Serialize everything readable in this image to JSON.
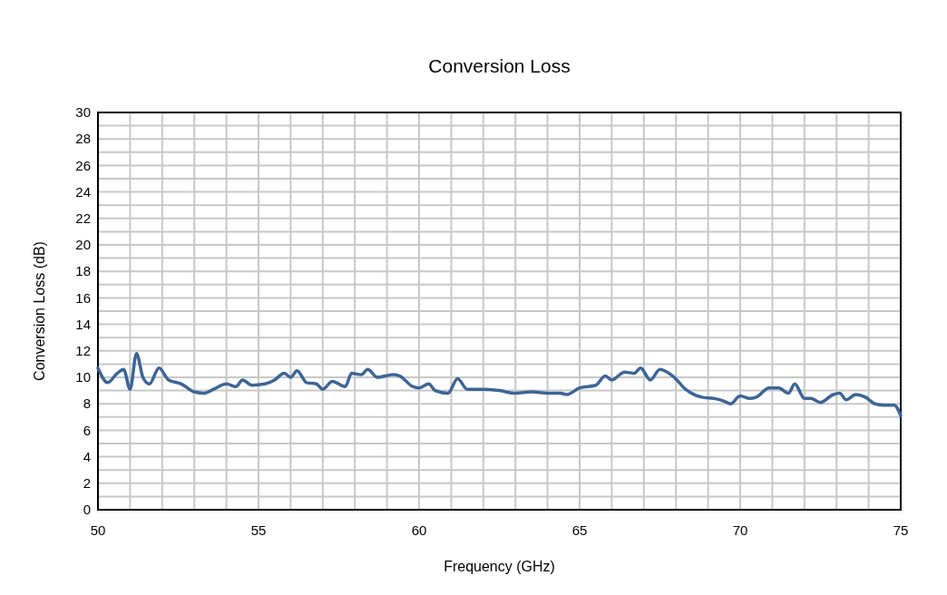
{
  "chart_data": {
    "type": "line",
    "title": "Conversion Loss",
    "xlabel": "Frequency (GHz)",
    "ylabel": "Conversion Loss (dB)",
    "x": [
      50,
      50.3,
      50.6,
      50.8,
      51.0,
      51.2,
      51.4,
      51.6,
      51.9,
      52.2,
      52.6,
      53.0,
      53.3,
      53.6,
      54.0,
      54.3,
      54.5,
      54.8,
      55.2,
      55.5,
      55.8,
      56.0,
      56.2,
      56.5,
      56.8,
      57.0,
      57.3,
      57.7,
      57.9,
      58.2,
      58.4,
      58.7,
      59.2,
      59.4,
      59.8,
      60.0,
      60.3,
      60.5,
      60.9,
      61.2,
      61.5,
      62.0,
      62.5,
      63.0,
      63.5,
      64.0,
      64.4,
      64.6,
      65.0,
      65.5,
      65.8,
      66.0,
      66.4,
      66.7,
      66.9,
      67.2,
      67.5,
      67.9,
      68.3,
      68.8,
      69.2,
      69.5,
      69.7,
      70.0,
      70.3,
      70.5,
      70.9,
      71.2,
      71.5,
      71.7,
      72.0,
      72.2,
      72.5,
      72.9,
      73.1,
      73.3,
      73.6,
      73.9,
      74.2,
      74.5,
      74.8,
      75.0
    ],
    "series": [
      {
        "color": "#3d6596",
        "values": [
          10.7,
          9.6,
          10.3,
          10.6,
          9.1,
          11.8,
          10.0,
          9.5,
          10.7,
          9.8,
          9.5,
          8.9,
          8.8,
          9.1,
          9.5,
          9.3,
          9.8,
          9.4,
          9.5,
          9.8,
          10.3,
          10.0,
          10.5,
          9.6,
          9.5,
          9.1,
          9.7,
          9.3,
          10.3,
          10.2,
          10.6,
          10.0,
          10.2,
          10.1,
          9.3,
          9.2,
          9.5,
          9.0,
          8.8,
          9.9,
          9.1,
          9.1,
          9.0,
          8.8,
          8.9,
          8.8,
          8.8,
          8.7,
          9.2,
          9.4,
          10.1,
          9.8,
          10.4,
          10.3,
          10.7,
          9.8,
          10.6,
          10.1,
          9.1,
          8.5,
          8.4,
          8.2,
          8.0,
          8.6,
          8.4,
          8.5,
          9.2,
          9.2,
          8.8,
          9.5,
          8.4,
          8.4,
          8.1,
          8.7,
          8.8,
          8.3,
          8.7,
          8.5,
          8.0,
          7.9,
          7.9,
          7.1
        ]
      }
    ],
    "xlim": [
      50,
      75
    ],
    "xticks": [
      50,
      {
        "value": 51,
        "label": null
      },
      {
        "value": 52,
        "label": null
      },
      {
        "value": 53,
        "label": null
      },
      {
        "value": 54,
        "label": null
      },
      55,
      {
        "value": 56,
        "label": null
      },
      {
        "value": 57,
        "label": null
      },
      {
        "value": 58,
        "label": null
      },
      {
        "value": 59,
        "label": null
      },
      60,
      {
        "value": 61,
        "label": null
      },
      {
        "value": 62,
        "label": null
      },
      {
        "value": 63,
        "label": null
      },
      {
        "value": 64,
        "label": null
      },
      65,
      {
        "value": 66,
        "label": null
      },
      {
        "value": 67,
        "label": null
      },
      {
        "value": 68,
        "label": null
      },
      {
        "value": 69,
        "label": null
      },
      70,
      {
        "value": 71,
        "label": null
      },
      {
        "value": 72,
        "label": null
      },
      {
        "value": 73,
        "label": null
      },
      {
        "value": 74,
        "label": null
      },
      75
    ],
    "ylim": [
      0,
      30
    ],
    "yticks": [
      0,
      {
        "value": 1,
        "label": null
      },
      2,
      {
        "value": 3,
        "label": null
      },
      4,
      {
        "value": 5,
        "label": null
      },
      6,
      {
        "value": 7,
        "label": null
      },
      8,
      {
        "value": 9,
        "label": null
      },
      10,
      {
        "value": 11,
        "label": null
      },
      12,
      {
        "value": 13,
        "label": null
      },
      14,
      {
        "value": 15,
        "label": null
      },
      16,
      {
        "value": 17,
        "label": null
      },
      18,
      {
        "value": 19,
        "label": null
      },
      20,
      {
        "value": 21,
        "label": null
      },
      22,
      {
        "value": 23,
        "label": null
      },
      24,
      {
        "value": 25,
        "label": null
      },
      26,
      {
        "value": 27,
        "label": null
      },
      28,
      {
        "value": 29,
        "label": null
      },
      30
    ],
    "grid": true,
    "marker": "none",
    "line_style": "solid"
  }
}
